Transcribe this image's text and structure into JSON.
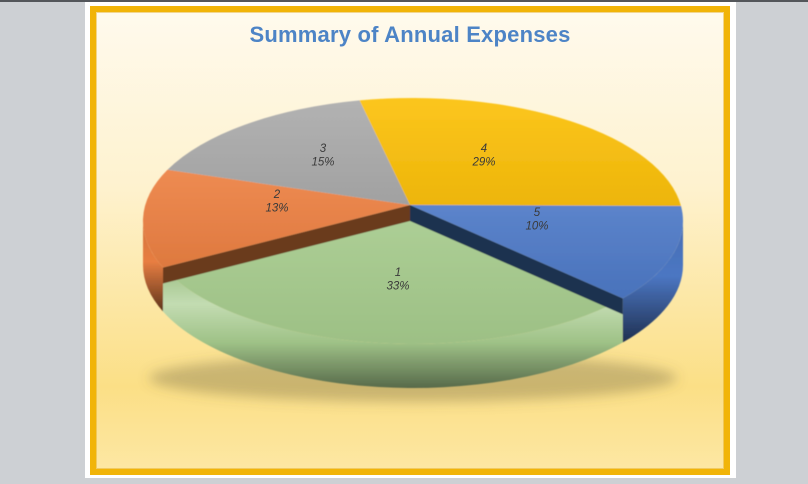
{
  "window": {
    "bg_color": "#CDD0D4",
    "top_border_color": "#53565A",
    "page_bg": "#FFFFFF"
  },
  "frame": {
    "border_color": "#F1B408",
    "bg_gradient": [
      "#FFFAED",
      "#FEF2CF",
      "#FBDF86",
      "#FDE7A3"
    ]
  },
  "chart_data": {
    "type": "pie",
    "is_3d": true,
    "title": "Summary of Annual Expenses",
    "title_color": "#4D84C6",
    "legend": "none",
    "direction": "clockwise",
    "start_angle_deg": 129,
    "slices": [
      {
        "category": "1",
        "value_pct": 33,
        "pct_label": "33%",
        "color": "#A7CC8E"
      },
      {
        "category": "2",
        "value_pct": 13,
        "pct_label": "13%",
        "color": "#EC8143"
      },
      {
        "category": "3",
        "value_pct": 15,
        "pct_label": "15%",
        "color": "#ABABAB"
      },
      {
        "category": "4",
        "value_pct": 29,
        "pct_label": "29%",
        "color": "#FCC10A"
      },
      {
        "category": "5",
        "value_pct": 10,
        "pct_label": "10%",
        "color": "#4E79C7"
      }
    ],
    "data_labels": {
      "show": [
        "category",
        "percentage"
      ],
      "color": "#3A3A3A",
      "italic": true
    }
  }
}
